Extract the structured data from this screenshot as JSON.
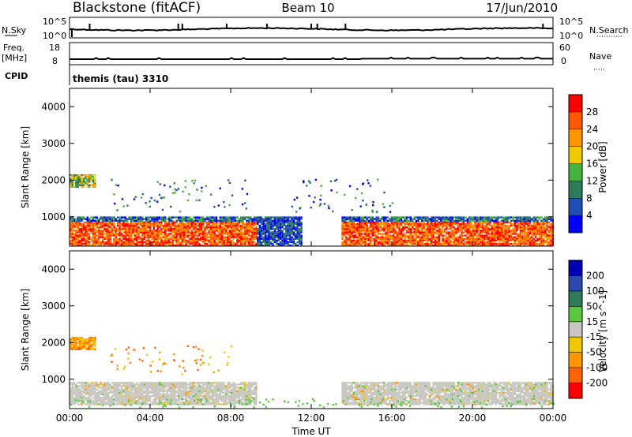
{
  "header": {
    "station": "Blackstone (fitACF)",
    "beam": "Beam 10",
    "date": "17/Jun/2010"
  },
  "noise_panel": {
    "left_label": "N.Sky",
    "right_label": "N.Search",
    "left_ticks": [
      "10^5",
      "10^0"
    ],
    "right_ticks": [
      "10^5",
      "10^0"
    ]
  },
  "freq_panel": {
    "left_label_1": "Freq.",
    "left_label_2": "[MHz]",
    "right_label": "Nave",
    "left_ticks": [
      "18",
      "8"
    ],
    "right_ticks": [
      "60",
      "0"
    ]
  },
  "cpid": {
    "label": "CPID",
    "value": "themis (tau) 3310"
  },
  "colors": {
    "power": [
      "#0000ff",
      "#1f4fb4",
      "#2e7d5a",
      "#46b43c",
      "#f0c800",
      "#ff9600",
      "#ff5a00",
      "#ff0000"
    ],
    "velocity": [
      "#0000b4",
      "#2a4ab0",
      "#2e7d5a",
      "#5ac83c",
      "#c8c8c0",
      "#f0c800",
      "#ff9600",
      "#ff6400",
      "#ff0000"
    ],
    "ground_scatter": "#c8c8c0"
  },
  "chart_data": [
    {
      "type": "heatmap",
      "title": "",
      "xlabel": "",
      "ylabel": "Slant Range [km]",
      "xlim": [
        "00:00",
        "00:00"
      ],
      "ylim": [
        200,
        4500
      ],
      "x_ticks": [
        "00:00",
        "04:00",
        "08:00",
        "12:00",
        "16:00",
        "20:00",
        "00:00"
      ],
      "y_ticks": [
        "1000",
        "2000",
        "3000",
        "4000"
      ],
      "colorbar": {
        "label": "Power [dB]",
        "ticks": [
          "4",
          "8",
          "12",
          "16",
          "20",
          "24",
          "28"
        ]
      },
      "scatter_regions": [
        {
          "t": [
            0.0,
            9.3
          ],
          "r": [
            200,
            1000
          ],
          "dominant_db": 28
        },
        {
          "t": [
            0.0,
            1.3
          ],
          "r": [
            1800,
            2150
          ],
          "dominant_db": 18
        },
        {
          "t": [
            9.3,
            11.5
          ],
          "r": [
            200,
            1000
          ],
          "dominant_db": 8
        },
        {
          "t": [
            13.5,
            24.0
          ],
          "r": [
            200,
            1000
          ],
          "dominant_db": 26
        }
      ]
    },
    {
      "type": "heatmap",
      "title": "",
      "xlabel": "Time UT",
      "ylabel": "Slant Range [km]",
      "xlim": [
        "00:00",
        "00:00"
      ],
      "ylim": [
        200,
        4500
      ],
      "x_ticks": [
        "00:00",
        "04:00",
        "08:00",
        "12:00",
        "16:00",
        "20:00",
        "00:00"
      ],
      "y_ticks": [
        "1000",
        "2000",
        "3000",
        "4000"
      ],
      "colorbar": {
        "label": "Velocity [m s^-1]",
        "ticks": [
          "200",
          "100",
          "50",
          "15",
          "-15",
          "-50",
          "-100",
          "-200"
        ]
      },
      "scatter_regions": [
        {
          "t": [
            0.0,
            9.3
          ],
          "r": [
            300,
            900
          ],
          "dominant_velocity": 0,
          "ground_scatter": true
        },
        {
          "t": [
            0.0,
            1.3
          ],
          "r": [
            1800,
            2150
          ],
          "dominant_velocity": -80
        },
        {
          "t": [
            13.5,
            24.0
          ],
          "r": [
            300,
            900
          ],
          "dominant_velocity": 0,
          "ground_scatter": true
        }
      ]
    }
  ]
}
